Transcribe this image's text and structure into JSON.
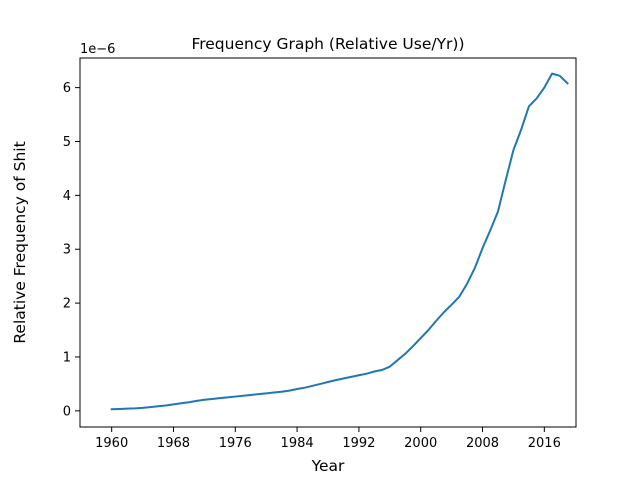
{
  "chart_data": {
    "type": "line",
    "title": "Frequency Graph (Relative Use/Yr))",
    "xlabel": "Year",
    "ylabel": "Relative Frequency of Shit",
    "y_offset_label": "1e−6",
    "xlim": [
      1955.9,
      2020.1
    ],
    "ylim": [
      -0.3,
      6.55
    ],
    "y_scale_multiplier": "1e-6",
    "grid": false,
    "x_ticks": [
      1960,
      1968,
      1976,
      1984,
      1992,
      2000,
      2008,
      2016
    ],
    "x_tick_labels": [
      "1960",
      "1968",
      "1976",
      "1984",
      "1992",
      "2000",
      "2008",
      "2016"
    ],
    "y_ticks": [
      0,
      1,
      2,
      3,
      4,
      5,
      6
    ],
    "y_tick_labels": [
      "0",
      "1",
      "2",
      "3",
      "4",
      "5",
      "6"
    ],
    "series": [
      {
        "color": "#1f77b4",
        "x": [
          1960,
          1961,
          1962,
          1963,
          1964,
          1965,
          1966,
          1967,
          1968,
          1969,
          1970,
          1971,
          1972,
          1973,
          1974,
          1975,
          1976,
          1977,
          1978,
          1979,
          1980,
          1981,
          1982,
          1983,
          1984,
          1985,
          1986,
          1987,
          1988,
          1989,
          1990,
          1991,
          1992,
          1993,
          1994,
          1995,
          1996,
          1997,
          1998,
          1999,
          2000,
          2001,
          2002,
          2003,
          2004,
          2005,
          2006,
          2007,
          2008,
          2009,
          2010,
          2011,
          2012,
          2013,
          2014,
          2015,
          2016,
          2017,
          2018,
          2019
        ],
        "y": [
          0.03,
          0.035,
          0.04,
          0.045,
          0.055,
          0.07,
          0.085,
          0.1,
          0.12,
          0.14,
          0.16,
          0.185,
          0.205,
          0.22,
          0.235,
          0.25,
          0.265,
          0.28,
          0.295,
          0.31,
          0.325,
          0.34,
          0.355,
          0.375,
          0.405,
          0.43,
          0.465,
          0.5,
          0.535,
          0.57,
          0.6,
          0.63,
          0.66,
          0.69,
          0.73,
          0.76,
          0.82,
          0.94,
          1.06,
          1.2,
          1.35,
          1.5,
          1.67,
          1.83,
          1.97,
          2.12,
          2.36,
          2.65,
          3.02,
          3.35,
          3.7,
          4.28,
          4.84,
          5.22,
          5.65,
          5.8,
          6.0,
          6.26,
          6.22,
          6.08
        ]
      }
    ]
  }
}
